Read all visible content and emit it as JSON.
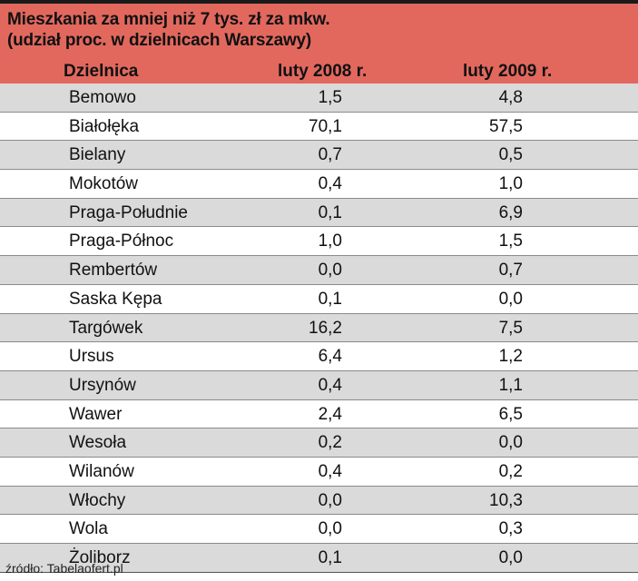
{
  "title_line1": "Mieszkania za mniej niż 7 tys. zł za mkw.",
  "title_line2": "(udział proc. w dzielnicach Warszawy)",
  "source": "źródło: Tabelaofert.pl",
  "colors": {
    "header_bg": "#e2685e",
    "row_shade": "#dadada",
    "row_white": "#ffffff"
  },
  "chart_data": {
    "type": "table",
    "title": "Mieszkania za mniej niż 7 tys. zł za mkw. (udział proc. w dzielnicach Warszawy)",
    "columns": [
      "Dzielnica",
      "luty 2008 r.",
      "luty 2009 r."
    ],
    "rows": [
      [
        "Bemowo",
        "1,5",
        "4,8"
      ],
      [
        "Białołęka",
        "70,1",
        "57,5"
      ],
      [
        "Bielany",
        "0,7",
        "0,5"
      ],
      [
        "Mokotów",
        "0,4",
        "1,0"
      ],
      [
        "Praga-Południe",
        "0,1",
        "6,9"
      ],
      [
        "Praga-Północ",
        "1,0",
        "1,5"
      ],
      [
        "Rembertów",
        "0,0",
        "0,7"
      ],
      [
        "Saska Kępa",
        "0,1",
        "0,0"
      ],
      [
        "Targówek",
        "16,2",
        "7,5"
      ],
      [
        "Ursus",
        "6,4",
        "1,2"
      ],
      [
        "Ursynów",
        "0,4",
        "1,1"
      ],
      [
        "Wawer",
        "2,4",
        "6,5"
      ],
      [
        "Wesoła",
        "0,2",
        "0,0"
      ],
      [
        "Wilanów",
        "0,4",
        "0,2"
      ],
      [
        "Włochy",
        "0,0",
        "10,3"
      ],
      [
        "Wola",
        "0,0",
        "0,3"
      ],
      [
        "Żoliborz",
        "0,1",
        "0,0"
      ]
    ]
  }
}
